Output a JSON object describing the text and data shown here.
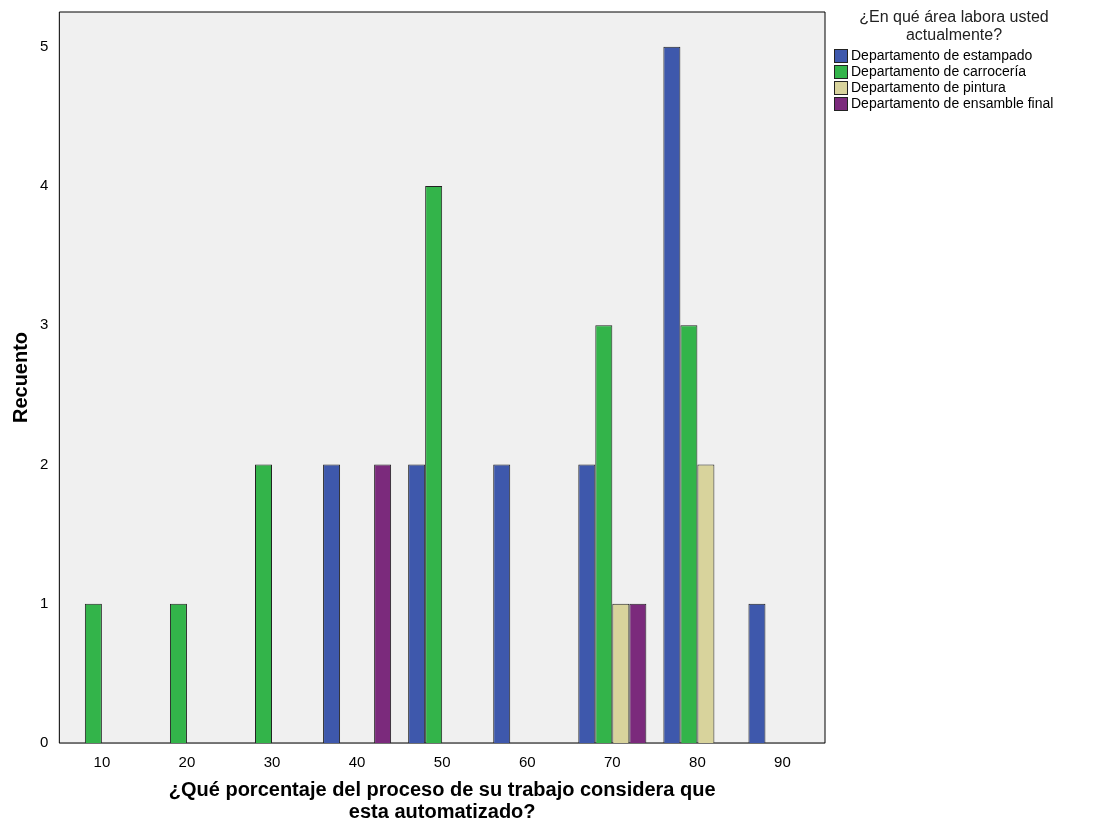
{
  "chart_data": {
    "type": "bar",
    "xlabel": "¿Qué porcentaje del proceso de su trabajo considera que esta automatizado?",
    "ylabel": "Recuento",
    "legend_title": "¿En qué área labora usted actualmente?",
    "legend": "right",
    "grid": false,
    "categories": [
      "10",
      "20",
      "30",
      "40",
      "50",
      "60",
      "70",
      "80",
      "90"
    ],
    "series": [
      {
        "name": "Departamento de estampado",
        "color": "#3e58ac",
        "values": [
          0,
          0,
          0,
          2,
          2,
          2,
          2,
          5,
          1
        ]
      },
      {
        "name": "Departamento de carrocería",
        "color": "#33b44a",
        "values": [
          1,
          1,
          2,
          0,
          4,
          0,
          3,
          3,
          0
        ]
      },
      {
        "name": "Departamento de pintura",
        "color": "#d8d39c",
        "values": [
          0,
          0,
          0,
          0,
          0,
          0,
          1,
          2,
          0
        ]
      },
      {
        "name": "Departamento de ensamble final",
        "color": "#7b2a7c",
        "values": [
          0,
          0,
          0,
          2,
          0,
          0,
          1,
          0,
          0
        ]
      }
    ],
    "ylim": [
      0,
      5.25
    ],
    "yticks": [
      0,
      1,
      2,
      3,
      4,
      5
    ]
  }
}
